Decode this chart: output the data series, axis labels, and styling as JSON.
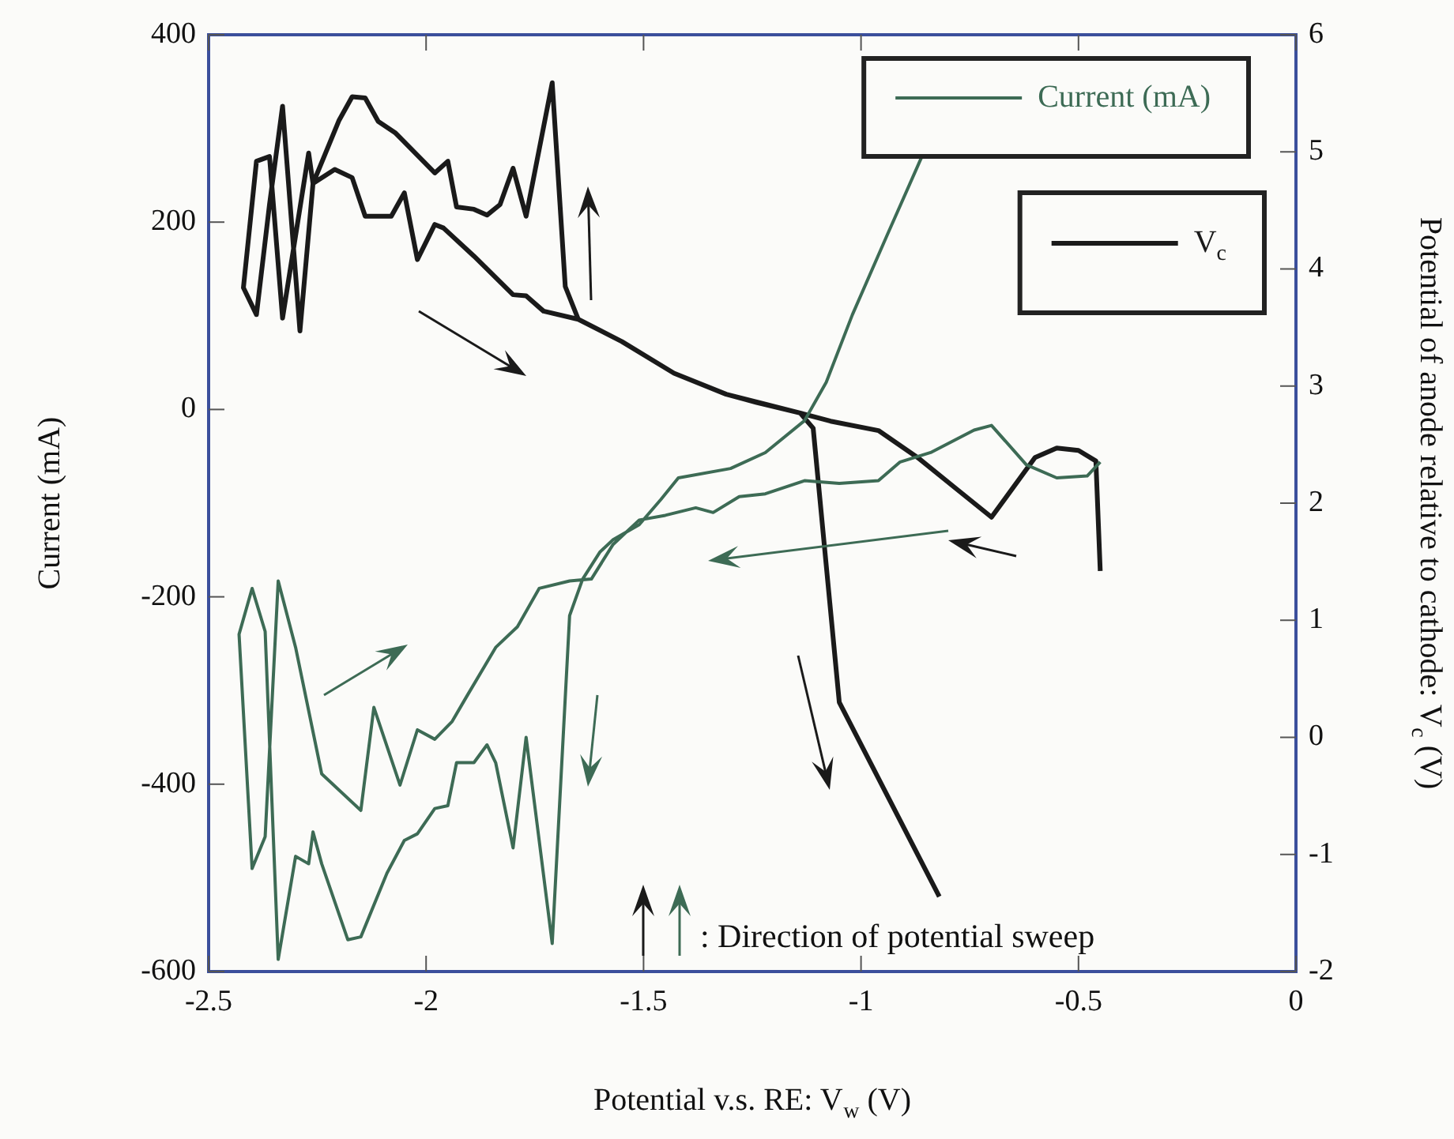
{
  "chart_data": {
    "type": "line",
    "xlabel": "Potential v.s. RE: V$_{w}$ (V)",
    "ylabel": "Current (mA)",
    "y2label": "Potential of anode relative to cathode: V$_{c}$ (V)",
    "xlim": [
      -2.5,
      0
    ],
    "xticks": [
      -2.5,
      -2,
      -1.5,
      -1,
      -0.5,
      0
    ],
    "ylim": [
      -600,
      400
    ],
    "yticks": [
      -600,
      -400,
      -200,
      0,
      200,
      400
    ],
    "y2lim": [
      -2,
      6
    ],
    "y2ticks": [
      -2,
      -1,
      0,
      1,
      2,
      3,
      4,
      5,
      6
    ],
    "legend": "top right",
    "marker": "none",
    "line_style": "solid",
    "annotations": [
      ": Direction of potential sweep"
    ],
    "series": [
      {
        "name": "Current (mA)",
        "color": "#3d6b55",
        "axis": "y",
        "x": [
          -0.86,
          -0.94,
          -1.02,
          -1.08,
          -1.13,
          -1.22,
          -1.3,
          -1.42,
          -1.46,
          -1.51,
          -1.57,
          -1.6,
          -1.64,
          -1.67,
          -1.71,
          -1.77,
          -1.8,
          -1.84,
          -1.86,
          -1.89,
          -1.93,
          -1.95,
          -1.98,
          -2.02,
          -2.05,
          -2.09,
          -2.15,
          -2.18,
          -2.24,
          -2.26,
          -2.27,
          -2.3,
          -2.34,
          -2.37,
          -2.4,
          -2.43,
          -2.4,
          -2.37,
          -2.34,
          -2.3,
          -2.24,
          -2.15,
          -2.12,
          -2.06,
          -2.02,
          -1.98,
          -1.94,
          -1.91,
          -1.84,
          -1.79,
          -1.74,
          -1.67,
          -1.62,
          -1.57,
          -1.51,
          -1.45,
          -1.38,
          -1.34,
          -1.28,
          -1.22,
          -1.13,
          -1.05,
          -0.96,
          -0.91,
          -0.84,
          -0.74,
          -0.7,
          -0.62,
          -0.55,
          -0.48,
          -0.45
        ],
        "values": [
          270,
          186,
          101,
          29,
          -12,
          -46,
          -63,
          -73,
          -96,
          -123,
          -139,
          -152,
          -181,
          -220,
          -570,
          -350,
          -468,
          -377,
          -358,
          -377,
          -377,
          -423,
          -426,
          -453,
          -460,
          -495,
          -563,
          -566,
          -485,
          -451,
          -485,
          -477,
          -587,
          -237,
          -191,
          -240,
          -490,
          -456,
          -183,
          -254,
          -389,
          -428,
          -318,
          -401,
          -342,
          -352,
          -333,
          -309,
          -254,
          -232,
          -191,
          -183,
          -181,
          -144,
          -118,
          -113,
          -105,
          -110,
          -93,
          -90,
          -76,
          -79,
          -76,
          -56,
          -46,
          -22,
          -17,
          -59,
          -73,
          -71,
          -56
        ]
      },
      {
        "name": "V$_{c}$",
        "color": "#1a1a1a",
        "axis": "y2",
        "x": [
          -0.45,
          -0.46,
          -0.5,
          -0.55,
          -0.6,
          -0.7,
          -0.78,
          -0.87,
          -0.96,
          -1.07,
          -1.14,
          -1.24,
          -1.31,
          -1.43,
          -1.55,
          -1.65,
          -1.68,
          -1.71,
          -1.77,
          -1.8,
          -1.83,
          -1.86,
          -1.89,
          -1.93,
          -1.95,
          -1.98,
          -2.07,
          -2.11,
          -2.14,
          -2.17,
          -2.2,
          -2.26,
          -2.29,
          -2.33,
          -2.36,
          -2.39,
          -2.42,
          -2.39,
          -2.36,
          -2.33,
          -2.27,
          -2.26,
          -2.21,
          -2.17,
          -2.14,
          -2.08,
          -2.05,
          -2.02,
          -1.98,
          -1.96,
          -1.89,
          -1.8,
          -1.77,
          -1.73,
          -1.65,
          -1.55,
          -1.43,
          -1.31,
          -1.14,
          -1.11,
          -1.05,
          -0.82
        ],
        "values": [
          1.42,
          2.36,
          2.45,
          2.47,
          2.39,
          1.88,
          2.12,
          2.39,
          2.62,
          2.7,
          2.77,
          2.86,
          2.93,
          3.11,
          3.38,
          3.57,
          3.85,
          5.59,
          4.45,
          4.86,
          4.55,
          4.46,
          4.51,
          4.53,
          4.92,
          4.82,
          5.16,
          5.26,
          5.46,
          5.47,
          5.27,
          4.73,
          3.47,
          5.39,
          4.55,
          3.61,
          3.84,
          4.92,
          4.96,
          3.58,
          4.99,
          4.73,
          4.85,
          4.78,
          4.45,
          4.45,
          4.65,
          4.08,
          4.38,
          4.35,
          4.11,
          3.78,
          3.77,
          3.64,
          3.57,
          3.38,
          3.11,
          2.93,
          2.77,
          2.64,
          0.3,
          -1.36
        ]
      }
    ]
  }
}
